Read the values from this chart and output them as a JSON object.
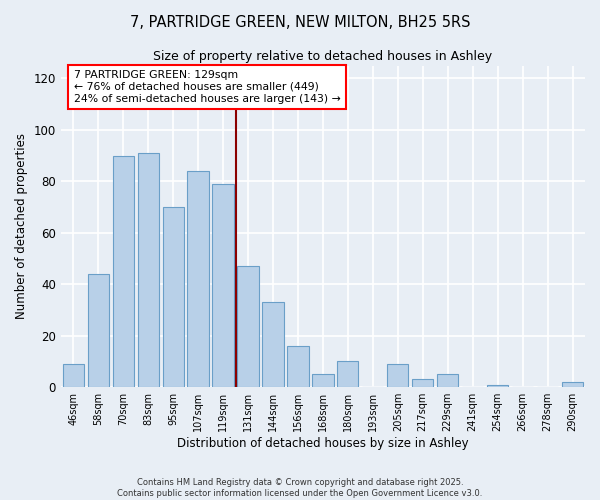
{
  "title": "7, PARTRIDGE GREEN, NEW MILTON, BH25 5RS",
  "subtitle": "Size of property relative to detached houses in Ashley",
  "xlabel": "Distribution of detached houses by size in Ashley",
  "ylabel": "Number of detached properties",
  "bar_labels": [
    "46sqm",
    "58sqm",
    "70sqm",
    "83sqm",
    "95sqm",
    "107sqm",
    "119sqm",
    "131sqm",
    "144sqm",
    "156sqm",
    "168sqm",
    "180sqm",
    "193sqm",
    "205sqm",
    "217sqm",
    "229sqm",
    "241sqm",
    "254sqm",
    "266sqm",
    "278sqm",
    "290sqm"
  ],
  "bar_values": [
    9,
    44,
    90,
    91,
    70,
    84,
    79,
    47,
    33,
    16,
    5,
    10,
    0,
    9,
    3,
    5,
    0,
    1,
    0,
    0,
    2
  ],
  "bar_color": "#b8d0e8",
  "bar_edge_color": "#6a9fc8",
  "vline_color": "#8b0000",
  "ylim": [
    0,
    125
  ],
  "yticks": [
    0,
    20,
    40,
    60,
    80,
    100,
    120
  ],
  "annotation_title": "7 PARTRIDGE GREEN: 129sqm",
  "annotation_line1": "← 76% of detached houses are smaller (449)",
  "annotation_line2": "24% of semi-detached houses are larger (143) →",
  "footer1": "Contains HM Land Registry data © Crown copyright and database right 2025.",
  "footer2": "Contains public sector information licensed under the Open Government Licence v3.0.",
  "bg_color": "#e8eef5",
  "grid_color": "#d0d8e4"
}
